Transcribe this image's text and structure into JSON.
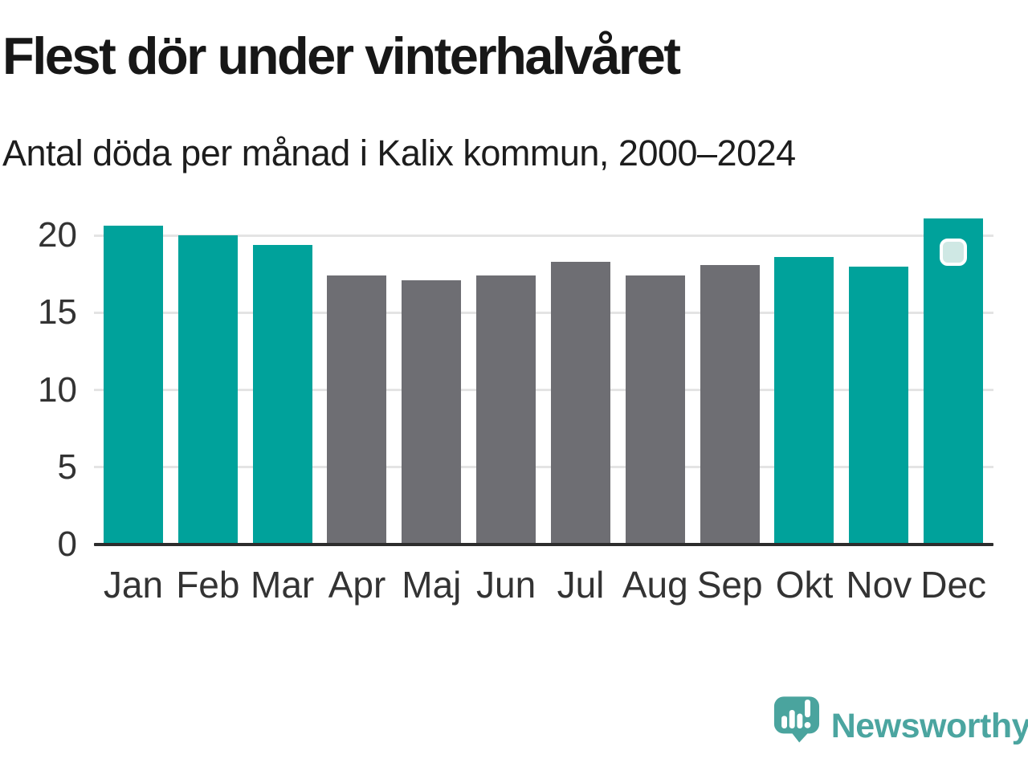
{
  "header": {
    "title": "Flest dör under vinterhalvåret",
    "subtitle": "Antal döda per månad i Kalix kommun, 2000–2024"
  },
  "chart_data": {
    "type": "bar",
    "title": "Flest dör under vinterhalvåret",
    "subtitle": "Antal döda per månad i Kalix kommun, 2000–2024",
    "categories": [
      "Jan",
      "Feb",
      "Mar",
      "Apr",
      "Maj",
      "Jun",
      "Jul",
      "Aug",
      "Sep",
      "Okt",
      "Nov",
      "Dec"
    ],
    "values": [
      20.6,
      20.0,
      19.4,
      17.4,
      17.1,
      17.4,
      18.3,
      17.4,
      18.1,
      18.6,
      18.0,
      21.1
    ],
    "groups": [
      "winter",
      "winter",
      "winter",
      "summer",
      "summer",
      "summer",
      "summer",
      "summer",
      "summer",
      "winter",
      "winter",
      "winter"
    ],
    "group_colors": {
      "winter": "#00a29b",
      "summer": "#6e6e73"
    },
    "xlabel": "",
    "ylabel": "",
    "yticks": [
      0,
      5,
      10,
      15,
      20
    ],
    "ylim": [
      0,
      21.8
    ],
    "grid": "horizontal",
    "legend": "none",
    "highlight": {
      "category": "Dec",
      "marker": "rounded-square",
      "fill": "#cfe8e4",
      "border": "#ffffff"
    }
  },
  "branding": {
    "logo_text": "Newsworthy",
    "logo_icon": "newsworthy-chart-bubble-icon",
    "logo_color": "#4ba5a0",
    "logo_bubble_color": "#4aa49e"
  },
  "colors": {
    "background": "#ffffff",
    "title_text": "#171717",
    "axis_text": "#333333",
    "gridline": "#e4e4e4",
    "axis_line": "#2d2d2d"
  }
}
